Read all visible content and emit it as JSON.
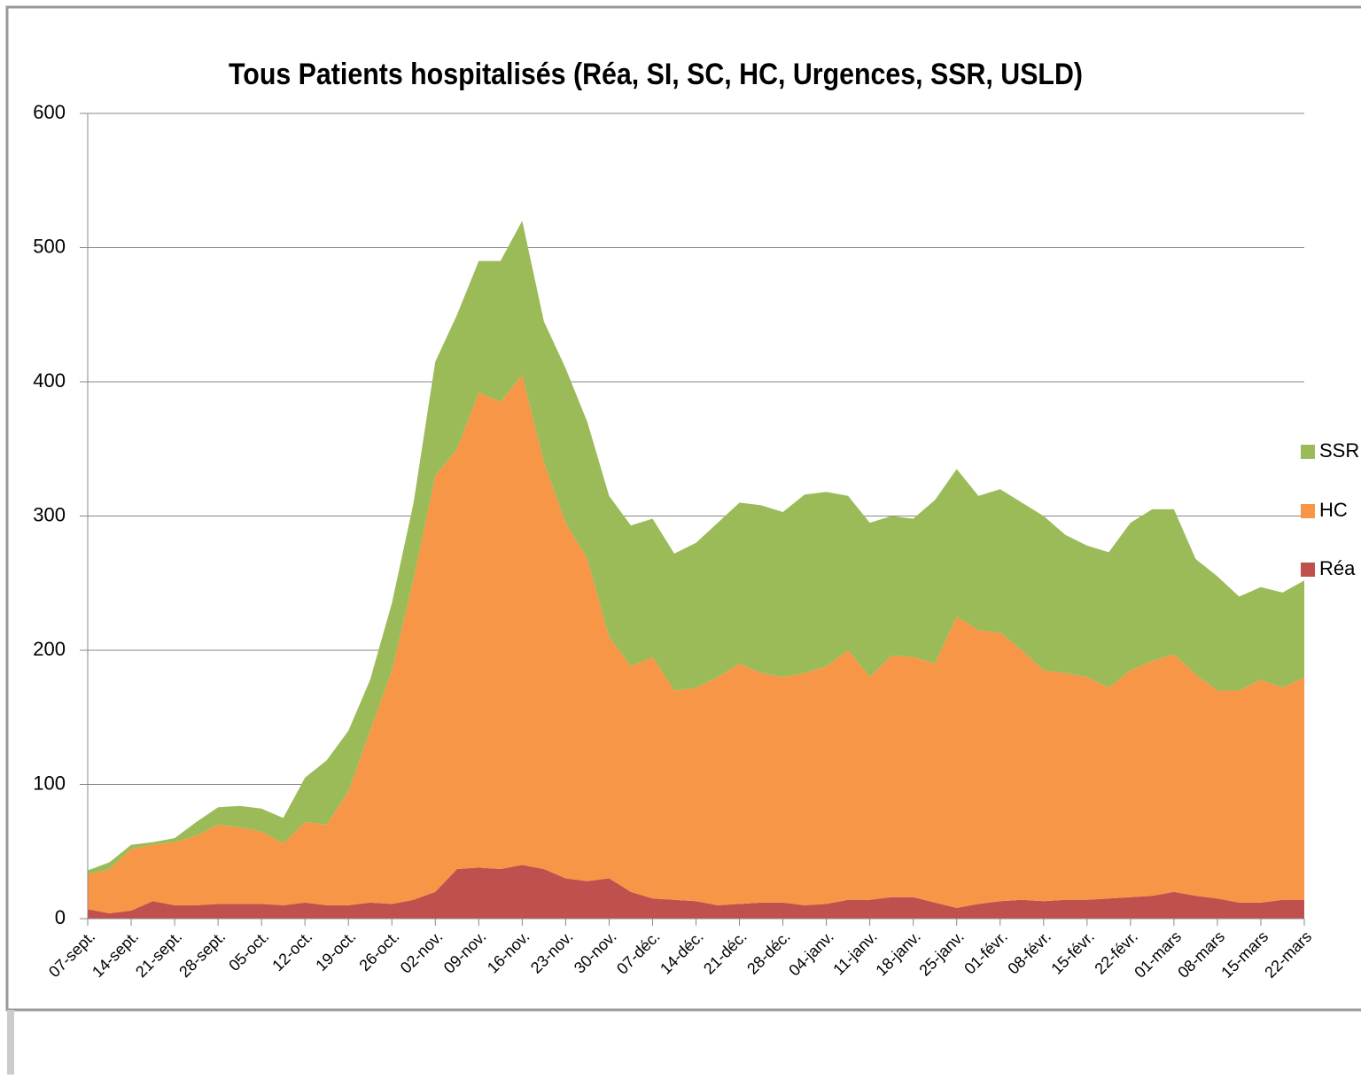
{
  "chart_data": {
    "type": "stacked_area",
    "title": "Tous Patients hospitalisés (Réa, SI, SC, HC, Urgences, SSR, USLD)",
    "categories": [
      "07-sept.",
      null,
      "14-sept.",
      null,
      "21-sept.",
      null,
      "28-sept.",
      null,
      "05-oct.",
      null,
      "12-oct.",
      null,
      "19-oct.",
      null,
      "26-oct.",
      null,
      "02-nov.",
      null,
      "09-nov.",
      null,
      "16-nov.",
      null,
      "23-nov.",
      null,
      "30-nov.",
      null,
      "07-déc.",
      null,
      "14-déc.",
      null,
      "21-déc.",
      null,
      "28-déc.",
      null,
      "04-janv.",
      null,
      "11-janv.",
      null,
      "18-janv.",
      null,
      "25-janv.",
      null,
      "01-févr.",
      null,
      "08-févr.",
      null,
      "15-févr.",
      null,
      "22-févr.",
      null,
      "01-mars",
      null,
      "08-mars",
      null,
      "15-mars",
      null,
      "22-mars"
    ],
    "series": [
      {
        "name": "Réa",
        "color": "#c0504d",
        "values": [
          7,
          4,
          6,
          13,
          10,
          10,
          11,
          11,
          11,
          10,
          12,
          10,
          10,
          12,
          11,
          14,
          20,
          37,
          38,
          37,
          40,
          37,
          30,
          28,
          30,
          20,
          15,
          14,
          13,
          10,
          11,
          12,
          12,
          10,
          11,
          14,
          14,
          16,
          16,
          12,
          8,
          11,
          13,
          14,
          13,
          14,
          14,
          15,
          16,
          17,
          20,
          17,
          15,
          12,
          12,
          14,
          14
        ]
      },
      {
        "name": "HC",
        "color": "#f79646",
        "values": [
          26,
          33,
          46,
          42,
          47,
          52,
          59,
          57,
          54,
          46,
          60,
          60,
          85,
          128,
          174,
          239,
          310,
          313,
          354,
          348,
          365,
          303,
          265,
          240,
          180,
          168,
          180,
          156,
          159,
          170,
          179,
          171,
          168,
          173,
          177,
          186,
          166,
          180,
          179,
          178,
          217,
          204,
          200,
          186,
          172,
          169,
          166,
          157,
          169,
          175,
          177,
          165,
          155,
          158,
          166,
          158,
          166
        ]
      },
      {
        "name": "SSR",
        "color": "#9bbb59",
        "values": [
          3,
          5,
          3,
          2,
          3,
          10,
          13,
          16,
          17,
          19,
          33,
          48,
          45,
          38,
          50,
          57,
          85,
          100,
          98,
          105,
          115,
          105,
          115,
          102,
          105,
          105,
          103,
          102,
          108,
          115,
          120,
          125,
          123,
          133,
          130,
          115,
          115,
          104,
          103,
          122,
          110,
          100,
          107,
          110,
          115,
          103,
          98,
          101,
          110,
          113,
          108,
          86,
          85,
          70,
          69,
          71,
          72
        ]
      }
    ],
    "ylim": [
      0,
      600
    ],
    "yticks": [
      0,
      100,
      200,
      300,
      400,
      500,
      600
    ],
    "grid": true,
    "legend": "right"
  }
}
